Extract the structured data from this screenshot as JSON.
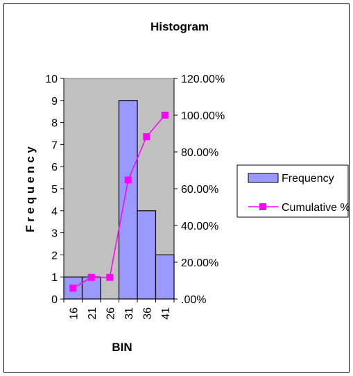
{
  "chart_data": {
    "type": "bar",
    "title": "Histogram",
    "xlabel": "BIN",
    "ylabel": "F r e q u e n c y",
    "categories": [
      "16",
      "21",
      "26",
      "31",
      "36",
      "41"
    ],
    "series": [
      {
        "name": "Frequency",
        "type": "bar",
        "axis": "left",
        "values": [
          1,
          1,
          0,
          9,
          4,
          2
        ]
      },
      {
        "name": "Cumulative %",
        "type": "line",
        "axis": "right",
        "values": [
          0.0588,
          0.1176,
          0.1176,
          0.6471,
          0.8824,
          1.0
        ]
      }
    ],
    "y_left": {
      "ylim": [
        0,
        10
      ],
      "ticks": [
        "0",
        "1",
        "2",
        "3",
        "4",
        "5",
        "6",
        "7",
        "8",
        "9",
        "10"
      ]
    },
    "y_right": {
      "ylim": [
        0,
        1.2
      ],
      "ticks": [
        ".00%",
        "20.00%",
        "40.00%",
        "60.00%",
        "80.00%",
        "100.00%",
        "120.00%"
      ]
    },
    "grid": false,
    "legend_placement": "right",
    "colors": {
      "plot_area": "#c0c0c0",
      "bar_fill": "#9999ff",
      "line": "#ff00ff",
      "marker": "#ff00ff"
    }
  }
}
